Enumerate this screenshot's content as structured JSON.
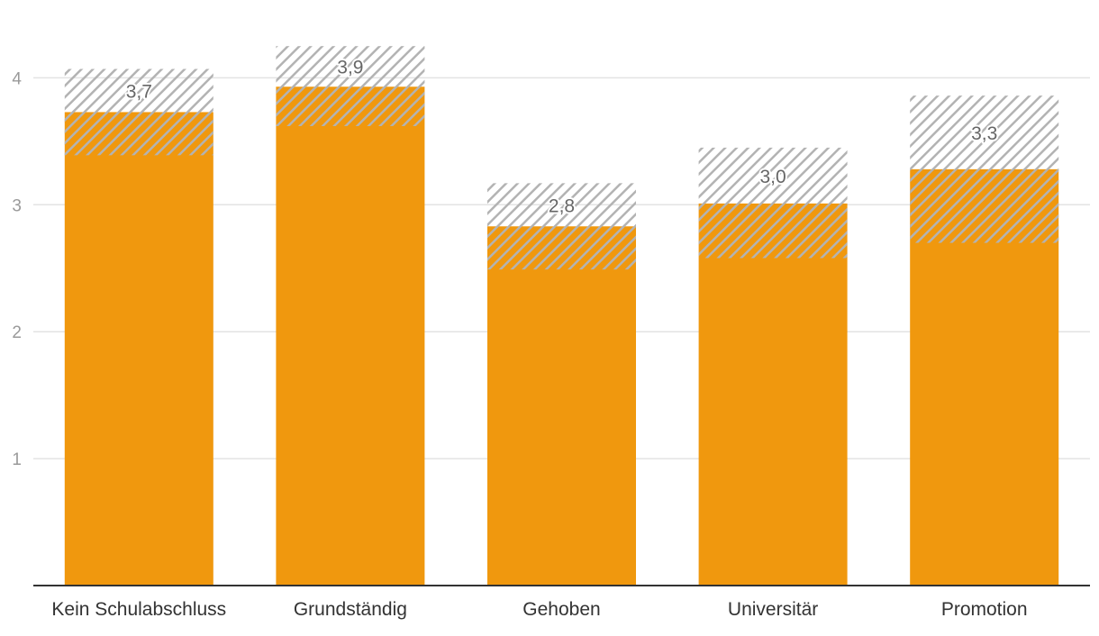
{
  "chart_data": {
    "type": "bar",
    "categories": [
      "Kein Schulabschluss",
      "Grundständig",
      "Gehoben",
      "Universitär",
      "Promotion"
    ],
    "values": [
      3.73,
      3.93,
      2.83,
      3.01,
      3.28
    ],
    "value_labels": [
      "3,7",
      "3,9",
      "2,8",
      "3,0",
      "3,3"
    ],
    "interval_low": [
      3.39,
      3.62,
      2.49,
      2.58,
      2.7
    ],
    "interval_high": [
      4.07,
      4.25,
      3.17,
      3.45,
      3.86
    ],
    "yticks": [
      {
        "value": 1,
        "label": "1"
      },
      {
        "value": 2,
        "label": "2"
      },
      {
        "value": 3,
        "label": "3"
      },
      {
        "value": 4,
        "label": "4"
      }
    ],
    "ylim": [
      0,
      4.45
    ],
    "grid": true,
    "colors": {
      "bar": "#F0980E",
      "interval_hatch": "#B3B3B3",
      "gridline": "#E3E3E3",
      "axis": "#333333"
    }
  }
}
